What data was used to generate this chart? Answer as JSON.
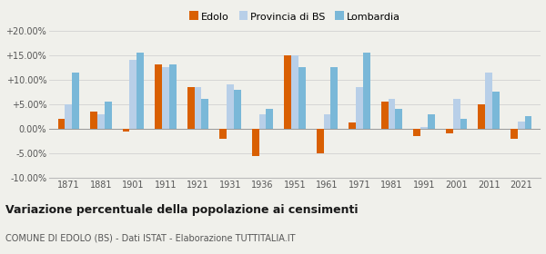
{
  "years": [
    1871,
    1881,
    1901,
    1911,
    1921,
    1931,
    1936,
    1951,
    1961,
    1971,
    1981,
    1991,
    2001,
    2011,
    2021
  ],
  "edolo": [
    2.0,
    3.5,
    -0.5,
    13.0,
    8.5,
    -2.0,
    -5.5,
    15.0,
    -5.0,
    1.2,
    5.5,
    -1.5,
    -1.0,
    5.0,
    -2.0
  ],
  "provincia_bs": [
    5.0,
    3.0,
    14.0,
    12.5,
    8.5,
    9.0,
    3.0,
    15.0,
    3.0,
    8.5,
    6.0,
    0.3,
    6.0,
    11.5,
    1.5
  ],
  "lombardia": [
    11.5,
    5.5,
    15.5,
    13.0,
    6.0,
    8.0,
    4.0,
    12.5,
    12.5,
    15.5,
    4.0,
    3.0,
    2.0,
    7.5,
    2.5
  ],
  "edolo_color": "#d95f02",
  "provincia_color": "#b8cfe8",
  "lombardia_color": "#7ab8d8",
  "title": "Variazione percentuale della popolazione ai censimenti",
  "subtitle": "COMUNE DI EDOLO (BS) - Dati ISTAT - Elaborazione TUTTITALIA.IT",
  "ylim": [
    -10,
    20
  ],
  "yticks": [
    -10,
    -5,
    0,
    5,
    10,
    15,
    20
  ],
  "ytick_labels": [
    "-10.00%",
    "-5.00%",
    "0.00%",
    "+5.00%",
    "+10.00%",
    "+15.00%",
    "+20.00%"
  ],
  "background_color": "#f0f0eb",
  "bar_width": 0.22
}
